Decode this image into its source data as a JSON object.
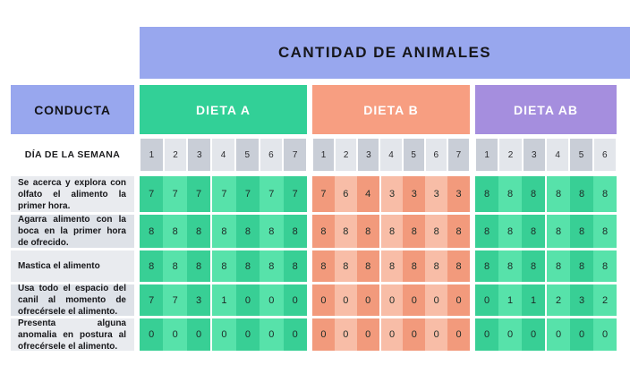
{
  "colors": {
    "periwinkle": "#98a7ee",
    "green_header": "#32d097",
    "green_cell_dark": "#38cf95",
    "green_cell_light": "#57e2aa",
    "salmon_header": "#f79e81",
    "salmon_cell_dark": "#f29a7c",
    "salmon_cell_light": "#f8bda7",
    "purple_header": "#a58ede",
    "day_cell_dark": "#c9ced7",
    "day_cell_light": "#e3e6eb",
    "label_bg_light": "#e9ebef",
    "label_bg_dark": "#dee2e8"
  },
  "chart_data": {
    "type": "table",
    "title": "CANTIDAD DE ANIMALES",
    "row_header_label": "CONDUCTA",
    "day_label": "DÍA DE LA SEMANA",
    "sections": [
      {
        "label": "DIETA A",
        "days": [
          1,
          2,
          3,
          4,
          5,
          6,
          7
        ]
      },
      {
        "label": "DIETA B",
        "days": [
          1,
          2,
          3,
          4,
          5,
          6,
          7
        ]
      },
      {
        "label": "DIETA AB",
        "days": [
          1,
          2,
          3,
          4,
          5,
          6
        ]
      }
    ],
    "rows": [
      {
        "label": "Se acerca y explora con olfato el alimento la primer hora.",
        "values": [
          [
            7,
            7,
            7,
            7,
            7,
            7,
            7
          ],
          [
            7,
            6,
            4,
            3,
            3,
            3,
            3
          ],
          [
            8,
            8,
            8,
            8,
            8,
            8
          ]
        ]
      },
      {
        "label": "Agarra alimento con la boca en la primer hora de ofrecido.",
        "values": [
          [
            8,
            8,
            8,
            8,
            8,
            8,
            8
          ],
          [
            8,
            8,
            8,
            8,
            8,
            8,
            8
          ],
          [
            8,
            8,
            8,
            8,
            8,
            8
          ]
        ]
      },
      {
        "label": "Mastica el alimento",
        "values": [
          [
            8,
            8,
            8,
            8,
            8,
            8,
            8
          ],
          [
            8,
            8,
            8,
            8,
            8,
            8,
            8
          ],
          [
            8,
            8,
            8,
            8,
            8,
            8
          ]
        ]
      },
      {
        "label": "Usa todo el espacio del canil al momento de ofrecérsele el alimento.",
        "values": [
          [
            7,
            7,
            3,
            1,
            0,
            0,
            0
          ],
          [
            0,
            0,
            0,
            0,
            0,
            0,
            0
          ],
          [
            0,
            1,
            1,
            2,
            3,
            2
          ]
        ]
      },
      {
        "label": "Presenta alguna anomalia en postura al ofrecérsele el alimento.",
        "values": [
          [
            0,
            0,
            0,
            0,
            0,
            0,
            0
          ],
          [
            0,
            0,
            0,
            0,
            0,
            0,
            0
          ],
          [
            0,
            0,
            0,
            0,
            0,
            0
          ]
        ]
      }
    ]
  }
}
